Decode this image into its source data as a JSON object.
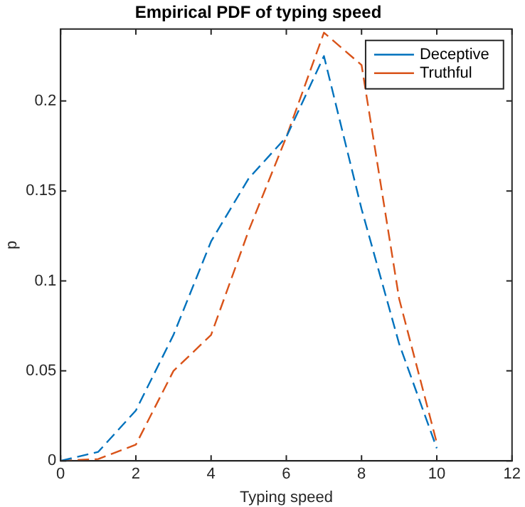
{
  "chart_data": {
    "type": "line",
    "title": "Empirical PDF of typing speed",
    "xlabel": "Typing speed",
    "ylabel": "p",
    "x": [
      0,
      1,
      2,
      3,
      4,
      5,
      6,
      7,
      8,
      9,
      10
    ],
    "series": [
      {
        "name": "Deceptive",
        "color": "#0072bd",
        "values": [
          0,
          0.005,
          0.028,
          0.07,
          0.122,
          0.157,
          0.18,
          0.225,
          0.14,
          0.065,
          0.007
        ]
      },
      {
        "name": "Truthful",
        "color": "#d95319",
        "values": [
          0,
          0.001,
          0.009,
          0.05,
          0.07,
          0.128,
          0.18,
          0.238,
          0.22,
          0.09,
          0.01
        ]
      }
    ],
    "xlim": [
      0,
      12
    ],
    "xticks": [
      0,
      2,
      4,
      6,
      8,
      10,
      12
    ],
    "ylim": [
      0,
      0.24
    ],
    "yticks": [
      0,
      0.05,
      0.1,
      0.15,
      0.2
    ],
    "grid": false,
    "legend": "top right",
    "marker": "none",
    "line_style": "dashed"
  }
}
